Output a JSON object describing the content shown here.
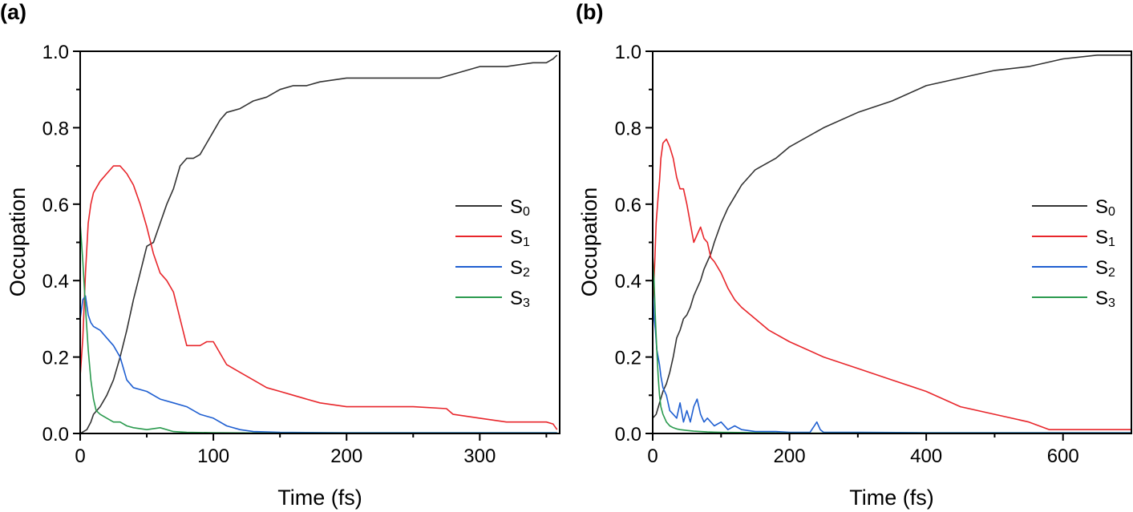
{
  "chart_data": [
    {
      "type": "line",
      "panel_label": "(a)",
      "xlabel": "Time (fs)",
      "ylabel": "Occupation",
      "xlim": [
        0,
        360
      ],
      "ylim": [
        0,
        1.0
      ],
      "xticks": [
        0,
        100,
        200,
        300
      ],
      "yticks": [
        0.0,
        0.2,
        0.4,
        0.6,
        0.8,
        1.0
      ],
      "ytick_labels": [
        "0.0",
        "0.2",
        "0.4",
        "0.6",
        "0.8",
        "1.0"
      ],
      "grid": false,
      "legend_position": "right",
      "series": [
        {
          "name": "S0",
          "label_base": "S",
          "label_sub": "0",
          "color": "#333333",
          "x": [
            0,
            5,
            8,
            10,
            15,
            20,
            25,
            30,
            35,
            40,
            45,
            50,
            55,
            60,
            65,
            70,
            75,
            80,
            85,
            90,
            95,
            100,
            105,
            110,
            120,
            130,
            140,
            150,
            160,
            170,
            180,
            200,
            220,
            250,
            270,
            280,
            290,
            300,
            320,
            340,
            350,
            355,
            358
          ],
          "y": [
            0,
            0.01,
            0.03,
            0.05,
            0.07,
            0.1,
            0.14,
            0.2,
            0.27,
            0.35,
            0.42,
            0.49,
            0.5,
            0.55,
            0.6,
            0.64,
            0.7,
            0.72,
            0.72,
            0.73,
            0.76,
            0.79,
            0.82,
            0.84,
            0.85,
            0.87,
            0.88,
            0.9,
            0.91,
            0.91,
            0.92,
            0.93,
            0.93,
            0.93,
            0.93,
            0.94,
            0.95,
            0.96,
            0.96,
            0.97,
            0.97,
            0.98,
            0.99
          ]
        },
        {
          "name": "S1",
          "label_base": "S",
          "label_sub": "1",
          "color": "#e8262b",
          "x": [
            0,
            2,
            4,
            6,
            8,
            10,
            15,
            20,
            25,
            30,
            35,
            40,
            45,
            50,
            55,
            60,
            65,
            70,
            75,
            80,
            85,
            90,
            95,
            100,
            110,
            120,
            130,
            140,
            150,
            160,
            170,
            180,
            200,
            250,
            275,
            280,
            300,
            320,
            340,
            350,
            355,
            358
          ],
          "y": [
            0.15,
            0.25,
            0.42,
            0.55,
            0.6,
            0.63,
            0.66,
            0.68,
            0.7,
            0.7,
            0.68,
            0.65,
            0.6,
            0.54,
            0.47,
            0.42,
            0.4,
            0.37,
            0.3,
            0.23,
            0.23,
            0.23,
            0.24,
            0.24,
            0.18,
            0.16,
            0.14,
            0.12,
            0.11,
            0.1,
            0.09,
            0.08,
            0.07,
            0.07,
            0.065,
            0.05,
            0.04,
            0.03,
            0.03,
            0.03,
            0.025,
            0.01
          ]
        },
        {
          "name": "S2",
          "label_base": "S",
          "label_sub": "2",
          "color": "#1f5fd1",
          "x": [
            0,
            2,
            4,
            6,
            8,
            10,
            15,
            20,
            25,
            30,
            35,
            40,
            50,
            60,
            70,
            80,
            90,
            100,
            110,
            120,
            130,
            150,
            200,
            250,
            300,
            358
          ],
          "y": [
            0.3,
            0.35,
            0.36,
            0.31,
            0.29,
            0.28,
            0.27,
            0.25,
            0.23,
            0.2,
            0.14,
            0.12,
            0.11,
            0.09,
            0.08,
            0.07,
            0.05,
            0.04,
            0.02,
            0.01,
            0.005,
            0.003,
            0.002,
            0.002,
            0.002,
            0.002
          ]
        },
        {
          "name": "S3",
          "label_base": "S",
          "label_sub": "3",
          "color": "#2a9a4e",
          "x": [
            0,
            2,
            4,
            6,
            8,
            10,
            12,
            15,
            20,
            25,
            30,
            35,
            40,
            50,
            60,
            70,
            80,
            100,
            150,
            200,
            300,
            358
          ],
          "y": [
            0.55,
            0.45,
            0.33,
            0.22,
            0.14,
            0.09,
            0.06,
            0.05,
            0.04,
            0.03,
            0.03,
            0.02,
            0.015,
            0.01,
            0.015,
            0.005,
            0.003,
            0.002,
            0.001,
            0.001,
            0.001,
            0.001
          ]
        }
      ]
    },
    {
      "type": "line",
      "panel_label": "(b)",
      "xlabel": "Time (fs)",
      "ylabel": "Occupation",
      "xlim": [
        0,
        700
      ],
      "ylim": [
        0,
        1.0
      ],
      "xticks": [
        0,
        200,
        400,
        600
      ],
      "yticks": [
        0.0,
        0.2,
        0.4,
        0.6,
        0.8,
        1.0
      ],
      "ytick_labels": [
        "0.0",
        "0.2",
        "0.4",
        "0.6",
        "0.8",
        "1.0"
      ],
      "grid": false,
      "legend_position": "right",
      "series": [
        {
          "name": "S0",
          "label_base": "S",
          "label_sub": "0",
          "color": "#333333",
          "x": [
            0,
            5,
            10,
            15,
            20,
            25,
            30,
            35,
            40,
            45,
            50,
            55,
            60,
            65,
            70,
            75,
            80,
            85,
            90,
            100,
            110,
            120,
            130,
            140,
            150,
            160,
            170,
            180,
            200,
            250,
            300,
            350,
            400,
            450,
            500,
            550,
            600,
            650,
            700
          ],
          "y": [
            0.04,
            0.05,
            0.08,
            0.11,
            0.13,
            0.16,
            0.2,
            0.25,
            0.27,
            0.3,
            0.31,
            0.33,
            0.36,
            0.38,
            0.4,
            0.43,
            0.45,
            0.47,
            0.5,
            0.55,
            0.59,
            0.62,
            0.65,
            0.67,
            0.69,
            0.7,
            0.71,
            0.72,
            0.75,
            0.8,
            0.84,
            0.87,
            0.91,
            0.93,
            0.95,
            0.96,
            0.98,
            0.99,
            0.99
          ]
        },
        {
          "name": "S1",
          "label_base": "S",
          "label_sub": "1",
          "color": "#e8262b",
          "x": [
            0,
            3,
            5,
            8,
            10,
            12,
            15,
            20,
            25,
            30,
            35,
            40,
            45,
            50,
            55,
            60,
            65,
            70,
            75,
            80,
            85,
            90,
            100,
            110,
            120,
            130,
            150,
            170,
            200,
            250,
            300,
            350,
            400,
            450,
            500,
            550,
            580,
            600,
            650,
            700
          ],
          "y": [
            0.32,
            0.45,
            0.55,
            0.62,
            0.66,
            0.72,
            0.76,
            0.77,
            0.75,
            0.72,
            0.67,
            0.64,
            0.64,
            0.6,
            0.55,
            0.5,
            0.52,
            0.54,
            0.51,
            0.5,
            0.46,
            0.45,
            0.42,
            0.38,
            0.35,
            0.33,
            0.3,
            0.27,
            0.24,
            0.2,
            0.17,
            0.14,
            0.11,
            0.07,
            0.05,
            0.03,
            0.01,
            0.01,
            0.01,
            0.01
          ]
        },
        {
          "name": "S2",
          "label_base": "S",
          "label_sub": "2",
          "color": "#1f5fd1",
          "x": [
            0,
            2,
            4,
            6,
            8,
            10,
            12,
            15,
            20,
            25,
            30,
            35,
            40,
            45,
            50,
            55,
            60,
            65,
            70,
            75,
            80,
            90,
            100,
            110,
            120,
            130,
            150,
            180,
            200,
            230,
            240,
            245,
            250,
            300,
            400,
            500,
            600,
            700
          ],
          "y": [
            0.38,
            0.3,
            0.27,
            0.22,
            0.2,
            0.18,
            0.15,
            0.12,
            0.1,
            0.06,
            0.05,
            0.04,
            0.08,
            0.03,
            0.06,
            0.03,
            0.07,
            0.09,
            0.05,
            0.03,
            0.04,
            0.02,
            0.03,
            0.01,
            0.02,
            0.01,
            0.005,
            0.005,
            0.003,
            0.003,
            0.03,
            0.01,
            0.003,
            0.003,
            0.002,
            0.002,
            0.002,
            0.002
          ]
        },
        {
          "name": "S3",
          "label_base": "S",
          "label_sub": "3",
          "color": "#2a9a4e",
          "x": [
            0,
            2,
            4,
            6,
            8,
            10,
            12,
            15,
            20,
            25,
            30,
            35,
            40,
            50,
            60,
            80,
            100,
            150,
            200,
            300,
            400,
            500,
            600,
            700
          ],
          "y": [
            0.47,
            0.4,
            0.3,
            0.22,
            0.15,
            0.1,
            0.07,
            0.05,
            0.03,
            0.02,
            0.015,
            0.012,
            0.01,
            0.008,
            0.006,
            0.004,
            0.003,
            0.002,
            0.001,
            0.001,
            0.001,
            0.001,
            0.001,
            0.001
          ]
        }
      ]
    }
  ]
}
